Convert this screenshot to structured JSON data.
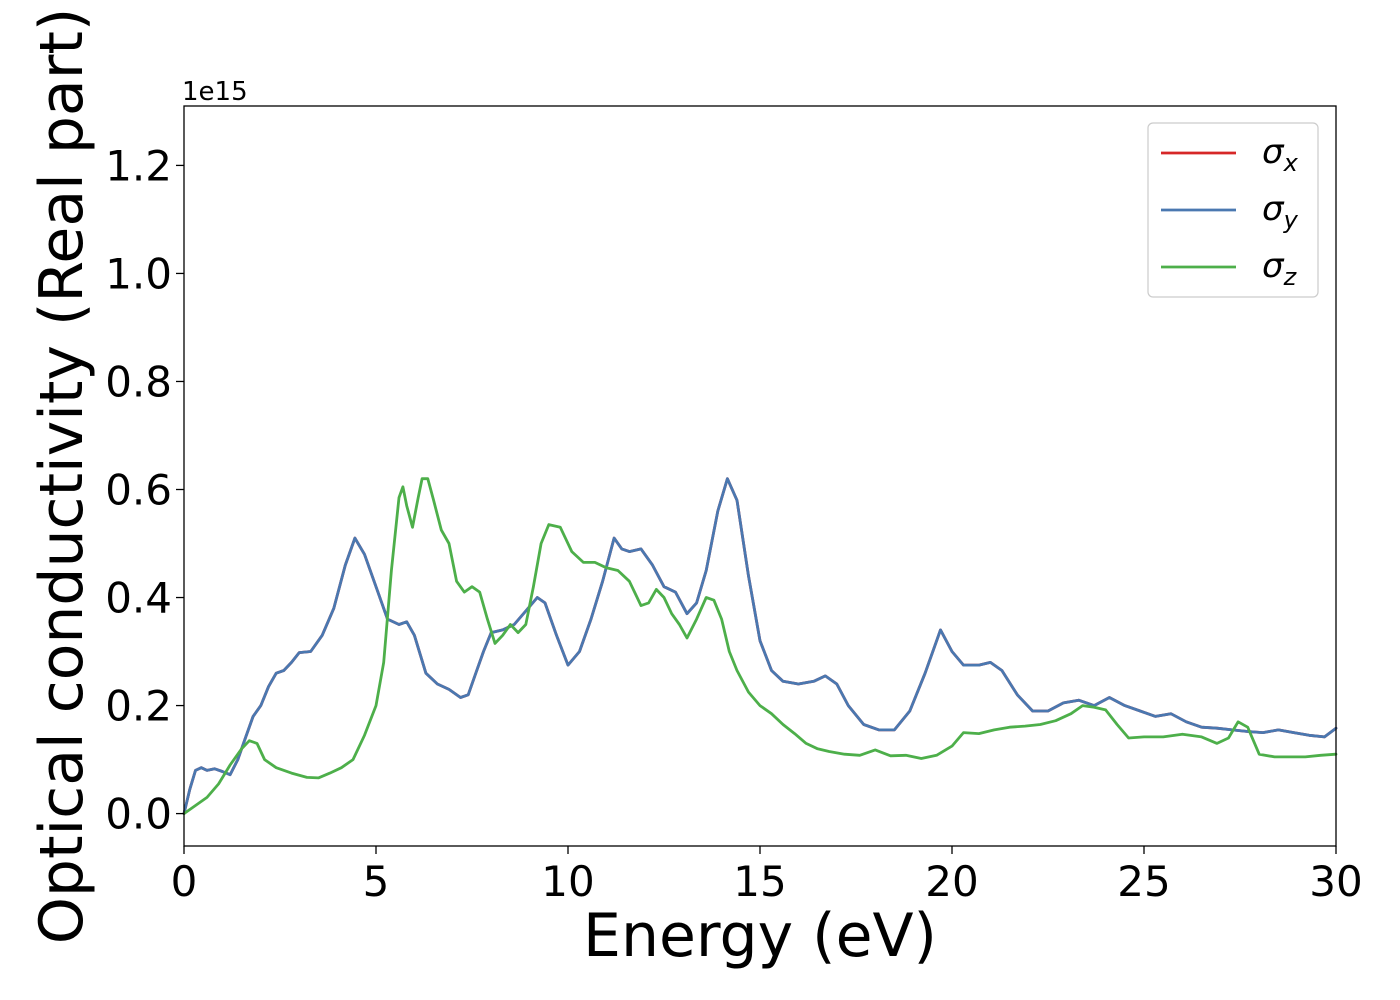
{
  "chart_data": {
    "type": "line",
    "title": "",
    "xlabel": "Energy (eV)",
    "ylabel": "Optical conductivity (Real part)",
    "y_multiplier_label": "1e15",
    "xlim": [
      0,
      30
    ],
    "ylim": [
      -0.06,
      1.31
    ],
    "x_ticks": [
      0,
      5,
      10,
      15,
      20,
      25,
      30
    ],
    "x_tick_labels": [
      "0",
      "5",
      "10",
      "15",
      "20",
      "25",
      "30"
    ],
    "y_ticks": [
      0.0,
      0.2,
      0.4,
      0.6,
      0.8,
      1.0,
      1.2
    ],
    "y_tick_labels": [
      "0.0",
      "0.2",
      "0.4",
      "0.6",
      "0.8",
      "1.0",
      "1.2"
    ],
    "grid": false,
    "legend_position": "top-right",
    "legend": [
      {
        "base": "σ",
        "sub": "x",
        "color": "#d62728"
      },
      {
        "base": "σ",
        "sub": "y",
        "color": "#4a78b0"
      },
      {
        "base": "σ",
        "sub": "z",
        "color": "#4daf4a"
      }
    ],
    "series": [
      {
        "name": "σx",
        "color": "#d62728",
        "x": [
          0,
          0.15,
          0.3,
          0.45,
          0.6,
          0.8,
          1.0,
          1.2,
          1.4,
          1.6,
          1.8,
          2.0,
          2.2,
          2.4,
          2.6,
          2.8,
          3.0,
          3.3,
          3.6,
          3.9,
          4.2,
          4.45,
          4.7,
          5.0,
          5.3,
          5.6,
          5.8,
          6.0,
          6.3,
          6.6,
          6.9,
          7.2,
          7.4,
          7.6,
          7.8,
          8.0,
          8.3,
          8.6,
          8.9,
          9.2,
          9.4,
          9.7,
          10.0,
          10.3,
          10.6,
          10.9,
          11.2,
          11.4,
          11.6,
          11.9,
          12.2,
          12.5,
          12.8,
          13.1,
          13.35,
          13.6,
          13.9,
          14.15,
          14.4,
          14.7,
          15.0,
          15.3,
          15.6,
          16.0,
          16.4,
          16.7,
          17.0,
          17.3,
          17.7,
          18.1,
          18.5,
          18.9,
          19.3,
          19.7,
          20.0,
          20.3,
          20.7,
          21.0,
          21.3,
          21.7,
          22.1,
          22.5,
          22.9,
          23.3,
          23.7,
          24.1,
          24.5,
          24.9,
          25.3,
          25.7,
          26.1,
          26.5,
          26.9,
          27.3,
          27.7,
          28.1,
          28.5,
          28.9,
          29.3,
          29.7,
          30.0
        ],
        "values": [
          0.0,
          0.045,
          0.08,
          0.085,
          0.08,
          0.083,
          0.078,
          0.072,
          0.1,
          0.14,
          0.18,
          0.2,
          0.235,
          0.26,
          0.265,
          0.28,
          0.298,
          0.3,
          0.33,
          0.38,
          0.46,
          0.51,
          0.48,
          0.42,
          0.36,
          0.35,
          0.355,
          0.33,
          0.26,
          0.24,
          0.23,
          0.215,
          0.22,
          0.26,
          0.3,
          0.335,
          0.34,
          0.35,
          0.375,
          0.4,
          0.39,
          0.33,
          0.275,
          0.3,
          0.36,
          0.43,
          0.51,
          0.49,
          0.485,
          0.49,
          0.46,
          0.42,
          0.41,
          0.37,
          0.39,
          0.45,
          0.56,
          0.62,
          0.58,
          0.44,
          0.32,
          0.265,
          0.245,
          0.24,
          0.245,
          0.255,
          0.24,
          0.2,
          0.165,
          0.155,
          0.155,
          0.19,
          0.26,
          0.34,
          0.3,
          0.275,
          0.275,
          0.28,
          0.265,
          0.22,
          0.19,
          0.19,
          0.205,
          0.21,
          0.2,
          0.215,
          0.2,
          0.19,
          0.18,
          0.185,
          0.17,
          0.16,
          0.158,
          0.155,
          0.152,
          0.15,
          0.155,
          0.15,
          0.145,
          0.142,
          0.158
        ]
      },
      {
        "name": "σy",
        "color": "#4a78b0",
        "x": [
          0,
          0.15,
          0.3,
          0.45,
          0.6,
          0.8,
          1.0,
          1.2,
          1.4,
          1.6,
          1.8,
          2.0,
          2.2,
          2.4,
          2.6,
          2.8,
          3.0,
          3.3,
          3.6,
          3.9,
          4.2,
          4.45,
          4.7,
          5.0,
          5.3,
          5.6,
          5.8,
          6.0,
          6.3,
          6.6,
          6.9,
          7.2,
          7.4,
          7.6,
          7.8,
          8.0,
          8.3,
          8.6,
          8.9,
          9.2,
          9.4,
          9.7,
          10.0,
          10.3,
          10.6,
          10.9,
          11.2,
          11.4,
          11.6,
          11.9,
          12.2,
          12.5,
          12.8,
          13.1,
          13.35,
          13.6,
          13.9,
          14.15,
          14.4,
          14.7,
          15.0,
          15.3,
          15.6,
          16.0,
          16.4,
          16.7,
          17.0,
          17.3,
          17.7,
          18.1,
          18.5,
          18.9,
          19.3,
          19.7,
          20.0,
          20.3,
          20.7,
          21.0,
          21.3,
          21.7,
          22.1,
          22.5,
          22.9,
          23.3,
          23.7,
          24.1,
          24.5,
          24.9,
          25.3,
          25.7,
          26.1,
          26.5,
          26.9,
          27.3,
          27.7,
          28.1,
          28.5,
          28.9,
          29.3,
          29.7,
          30.0
        ],
        "values": [
          0.0,
          0.045,
          0.08,
          0.085,
          0.08,
          0.083,
          0.078,
          0.072,
          0.1,
          0.14,
          0.18,
          0.2,
          0.235,
          0.26,
          0.265,
          0.28,
          0.298,
          0.3,
          0.33,
          0.38,
          0.46,
          0.51,
          0.48,
          0.42,
          0.36,
          0.35,
          0.355,
          0.33,
          0.26,
          0.24,
          0.23,
          0.215,
          0.22,
          0.26,
          0.3,
          0.335,
          0.34,
          0.35,
          0.375,
          0.4,
          0.39,
          0.33,
          0.275,
          0.3,
          0.36,
          0.43,
          0.51,
          0.49,
          0.485,
          0.49,
          0.46,
          0.42,
          0.41,
          0.37,
          0.39,
          0.45,
          0.56,
          0.62,
          0.58,
          0.44,
          0.32,
          0.265,
          0.245,
          0.24,
          0.245,
          0.255,
          0.24,
          0.2,
          0.165,
          0.155,
          0.155,
          0.19,
          0.26,
          0.34,
          0.3,
          0.275,
          0.275,
          0.28,
          0.265,
          0.22,
          0.19,
          0.19,
          0.205,
          0.21,
          0.2,
          0.215,
          0.2,
          0.19,
          0.18,
          0.185,
          0.17,
          0.16,
          0.158,
          0.155,
          0.152,
          0.15,
          0.155,
          0.15,
          0.145,
          0.142,
          0.158
        ]
      },
      {
        "name": "σz",
        "color": "#4daf4a",
        "x": [
          0,
          0.3,
          0.6,
          0.9,
          1.2,
          1.5,
          1.7,
          1.9,
          2.1,
          2.4,
          2.8,
          3.2,
          3.5,
          3.8,
          4.1,
          4.4,
          4.7,
          5.0,
          5.2,
          5.4,
          5.6,
          5.7,
          5.8,
          5.95,
          6.1,
          6.2,
          6.35,
          6.5,
          6.7,
          6.9,
          7.1,
          7.3,
          7.5,
          7.7,
          7.9,
          8.1,
          8.3,
          8.5,
          8.7,
          8.9,
          9.1,
          9.3,
          9.5,
          9.8,
          10.1,
          10.4,
          10.7,
          11.0,
          11.3,
          11.6,
          11.9,
          12.1,
          12.3,
          12.5,
          12.7,
          12.9,
          13.1,
          13.35,
          13.6,
          13.8,
          14.0,
          14.2,
          14.4,
          14.7,
          15.0,
          15.3,
          15.6,
          15.9,
          16.2,
          16.5,
          16.8,
          17.2,
          17.6,
          18.0,
          18.4,
          18.8,
          19.2,
          19.6,
          20.0,
          20.3,
          20.7,
          21.1,
          21.5,
          21.9,
          22.3,
          22.7,
          23.1,
          23.4,
          23.7,
          24.0,
          24.3,
          24.6,
          25.0,
          25.5,
          26.0,
          26.5,
          26.9,
          27.2,
          27.45,
          27.7,
          28.0,
          28.4,
          28.8,
          29.2,
          29.6,
          30.0
        ],
        "values": [
          0.0,
          0.015,
          0.03,
          0.055,
          0.09,
          0.12,
          0.135,
          0.13,
          0.1,
          0.085,
          0.075,
          0.067,
          0.066,
          0.075,
          0.085,
          0.1,
          0.145,
          0.2,
          0.28,
          0.45,
          0.585,
          0.605,
          0.57,
          0.53,
          0.585,
          0.62,
          0.62,
          0.58,
          0.525,
          0.5,
          0.43,
          0.41,
          0.42,
          0.41,
          0.36,
          0.315,
          0.33,
          0.35,
          0.335,
          0.35,
          0.42,
          0.5,
          0.535,
          0.53,
          0.485,
          0.465,
          0.465,
          0.455,
          0.45,
          0.43,
          0.385,
          0.39,
          0.415,
          0.4,
          0.37,
          0.35,
          0.325,
          0.36,
          0.4,
          0.395,
          0.36,
          0.3,
          0.265,
          0.225,
          0.2,
          0.185,
          0.165,
          0.148,
          0.13,
          0.12,
          0.115,
          0.11,
          0.108,
          0.118,
          0.107,
          0.108,
          0.102,
          0.108,
          0.125,
          0.15,
          0.148,
          0.155,
          0.16,
          0.162,
          0.165,
          0.172,
          0.185,
          0.2,
          0.197,
          0.192,
          0.165,
          0.14,
          0.142,
          0.142,
          0.147,
          0.142,
          0.13,
          0.14,
          0.17,
          0.16,
          0.11,
          0.105,
          0.105,
          0.105,
          0.108,
          0.11
        ]
      }
    ]
  }
}
